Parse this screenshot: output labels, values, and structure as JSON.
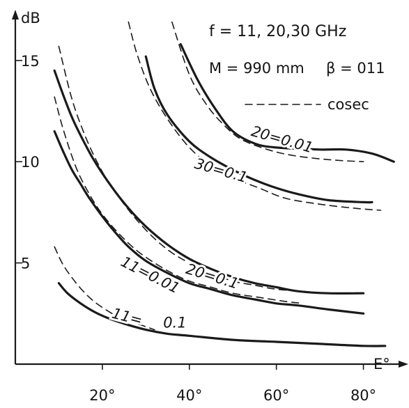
{
  "chart_data": {
    "type": "line",
    "title": "",
    "xlabel": "E°",
    "ylabel": "dB",
    "xlim": [
      0,
      90
    ],
    "ylim": [
      0,
      17.3
    ],
    "x_ticks": [
      {
        "value": 20,
        "label": "20°"
      },
      {
        "value": 40,
        "label": "40°"
      },
      {
        "value": 60,
        "label": "60°"
      },
      {
        "value": 80,
        "label": "80°"
      }
    ],
    "y_ticks": [
      {
        "value": 5,
        "label": "5"
      },
      {
        "value": 10,
        "label": "10"
      },
      {
        "value": 15,
        "label": "15"
      }
    ],
    "annotations": [
      "f = 11, 20,30 GHz",
      "M = 990 mm",
      "β = 011"
    ],
    "legend": {
      "label": "cosec",
      "style": "dashed",
      "placement": "top-right"
    },
    "grid": false,
    "series": [
      {
        "name": "20 = 0.01",
        "style": "solid",
        "points": [
          [
            38,
            15.8
          ],
          [
            42,
            14.0
          ],
          [
            46,
            12.6
          ],
          [
            50,
            11.5
          ],
          [
            55,
            10.9
          ],
          [
            60,
            10.7
          ],
          [
            70,
            10.6
          ],
          [
            76,
            10.6
          ],
          [
            82,
            10.4
          ],
          [
            87,
            10.0
          ]
        ]
      },
      {
        "name": "30 = 0.1",
        "style": "solid",
        "points": [
          [
            30,
            15.2
          ],
          [
            32,
            13.6
          ],
          [
            35,
            12.3
          ],
          [
            40,
            11.0
          ],
          [
            45,
            10.2
          ],
          [
            50,
            9.6
          ],
          [
            55,
            9.1
          ],
          [
            60,
            8.7
          ],
          [
            65,
            8.4
          ],
          [
            72,
            8.1
          ],
          [
            80,
            8.0
          ],
          [
            82,
            8.0
          ]
        ]
      },
      {
        "name": "20 = 0.1",
        "style": "solid",
        "points": [
          [
            9,
            14.5
          ],
          [
            11,
            13.3
          ],
          [
            13,
            12.2
          ],
          [
            15,
            11.3
          ],
          [
            18,
            10.1
          ],
          [
            22,
            8.8
          ],
          [
            26,
            7.7
          ],
          [
            30,
            6.8
          ],
          [
            35,
            5.9
          ],
          [
            40,
            5.2
          ],
          [
            45,
            4.7
          ],
          [
            50,
            4.3
          ],
          [
            55,
            4.0
          ],
          [
            60,
            3.8
          ],
          [
            65,
            3.6
          ],
          [
            72,
            3.5
          ],
          [
            80,
            3.5
          ]
        ]
      },
      {
        "name": "11 = 0.01",
        "style": "solid",
        "points": [
          [
            9,
            11.5
          ],
          [
            11,
            10.5
          ],
          [
            13,
            9.6
          ],
          [
            15,
            8.9
          ],
          [
            17,
            8.2
          ],
          [
            20,
            7.3
          ],
          [
            23,
            6.5
          ],
          [
            26,
            5.8
          ],
          [
            30,
            5.1
          ],
          [
            35,
            4.5
          ],
          [
            40,
            4.0
          ],
          [
            45,
            3.7
          ],
          [
            50,
            3.4
          ],
          [
            55,
            3.2
          ],
          [
            60,
            3.0
          ],
          [
            65,
            2.9
          ],
          [
            72,
            2.7
          ],
          [
            80,
            2.5
          ]
        ]
      },
      {
        "name": "11 = 0.1",
        "style": "solid",
        "points": [
          [
            10,
            4.0
          ],
          [
            12,
            3.5
          ],
          [
            15,
            3.0
          ],
          [
            18,
            2.6
          ],
          [
            21,
            2.3
          ],
          [
            25,
            2.0
          ],
          [
            30,
            1.7
          ],
          [
            35,
            1.5
          ],
          [
            40,
            1.4
          ],
          [
            50,
            1.2
          ],
          [
            60,
            1.1
          ],
          [
            70,
            1.0
          ],
          [
            80,
            0.9
          ],
          [
            85,
            0.9
          ]
        ]
      },
      {
        "name": "cosec (20 = 0.01)",
        "style": "dashed",
        "points": [
          [
            36,
            16.9
          ],
          [
            40,
            14.3
          ],
          [
            44,
            12.8
          ],
          [
            48,
            11.8
          ],
          [
            52,
            11.1
          ],
          [
            58,
            10.6
          ],
          [
            64,
            10.3
          ],
          [
            72,
            10.1
          ],
          [
            80,
            10.0
          ]
        ]
      },
      {
        "name": "cosec (30 = 0.1)",
        "style": "dashed",
        "points": [
          [
            26,
            16.9
          ],
          [
            28,
            15.3
          ],
          [
            31,
            13.6
          ],
          [
            35,
            12.1
          ],
          [
            40,
            10.7
          ],
          [
            45,
            9.8
          ],
          [
            50,
            9.2
          ],
          [
            56,
            8.7
          ],
          [
            62,
            8.2
          ],
          [
            70,
            7.9
          ],
          [
            78,
            7.7
          ],
          [
            84,
            7.6
          ]
        ]
      },
      {
        "name": "cosec (20 = 0.1)",
        "style": "dashed",
        "points": [
          [
            10,
            15.7
          ],
          [
            13,
            13.1
          ],
          [
            16,
            11.3
          ],
          [
            19,
            9.9
          ],
          [
            22,
            8.8
          ],
          [
            25,
            7.9
          ],
          [
            28,
            7.1
          ],
          [
            32,
            6.2
          ],
          [
            36,
            5.5
          ],
          [
            40,
            5.0
          ],
          [
            45,
            4.5
          ],
          [
            50,
            4.1
          ],
          [
            55,
            3.9
          ],
          [
            60,
            3.7
          ],
          [
            66,
            3.6
          ],
          [
            72,
            3.5
          ]
        ]
      },
      {
        "name": "cosec (11 = 0.01)",
        "style": "dashed",
        "points": [
          [
            9,
            13.2
          ],
          [
            11,
            11.6
          ],
          [
            14,
            9.7
          ],
          [
            17,
            8.4
          ],
          [
            20,
            7.4
          ],
          [
            24,
            6.4
          ],
          [
            28,
            5.6
          ],
          [
            32,
            5.0
          ],
          [
            36,
            4.5
          ],
          [
            40,
            4.1
          ],
          [
            45,
            3.8
          ],
          [
            50,
            3.5
          ],
          [
            56,
            3.3
          ],
          [
            62,
            3.1
          ],
          [
            66,
            3.0
          ]
        ]
      },
      {
        "name": "cosec (11 = 0.1)",
        "style": "dashed",
        "points": [
          [
            9,
            5.8
          ],
          [
            11,
            4.9
          ],
          [
            14,
            4.0
          ],
          [
            17,
            3.3
          ],
          [
            20,
            2.8
          ],
          [
            24,
            2.3
          ],
          [
            28,
            2.0
          ],
          [
            32,
            1.7
          ]
        ]
      }
    ],
    "curve_labels": [
      {
        "series": "20 = 0.01",
        "text": "20=0.01",
        "at": [
          54,
          11.3
        ],
        "angle": 16
      },
      {
        "series": "30 = 0.1",
        "text": "30=0.1",
        "at": [
          41,
          9.7
        ],
        "angle": 16
      },
      {
        "series": "20 = 0.1",
        "text": "20=0.1",
        "at": [
          39,
          4.5
        ],
        "angle": 17
      },
      {
        "series": "11 = 0.01",
        "text": "11=0.01",
        "at": [
          24,
          4.9
        ],
        "angle": 27
      },
      {
        "series": "11 = 0.1",
        "text": "11=",
        "at": [
          22,
          2.3
        ],
        "angle": 15
      },
      {
        "series": "11 = 0.1",
        "text": "0.1",
        "at": [
          34,
          1.8
        ],
        "angle": 0
      }
    ]
  }
}
